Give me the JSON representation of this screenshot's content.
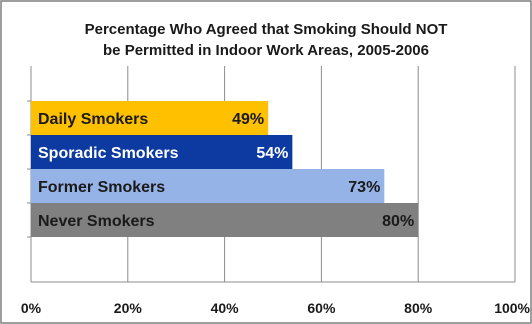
{
  "chart_data": {
    "type": "bar",
    "orientation": "horizontal",
    "title": "Percentage Who Agreed that Smoking Should NOT be Permitted in Indoor Work Areas, 2005-2006",
    "title_lines": [
      "Percentage Who Agreed that Smoking Should NOT",
      "be Permitted in Indoor Work Areas, 2005-2006"
    ],
    "categories": [
      "Daily Smokers",
      "Sporadic Smokers",
      "Former Smokers",
      "Never Smokers"
    ],
    "values": [
      49,
      54,
      73,
      80
    ],
    "value_labels": [
      "49%",
      "54%",
      "73%",
      "80%"
    ],
    "colors": [
      "#ffc000",
      "#0d3aa0",
      "#95b3e7",
      "#808080"
    ],
    "label_colors": [
      "#1a1a1a",
      "#ffffff",
      "#1a1a1a",
      "#1a1a1a"
    ],
    "xlim": [
      0,
      100
    ],
    "xticks": [
      0,
      20,
      40,
      60,
      80,
      100
    ],
    "xtick_labels": [
      "0%",
      "20%",
      "40%",
      "60%",
      "80%",
      "100%"
    ],
    "xlabel": "",
    "ylabel": "",
    "grid": true,
    "legend": "none"
  }
}
